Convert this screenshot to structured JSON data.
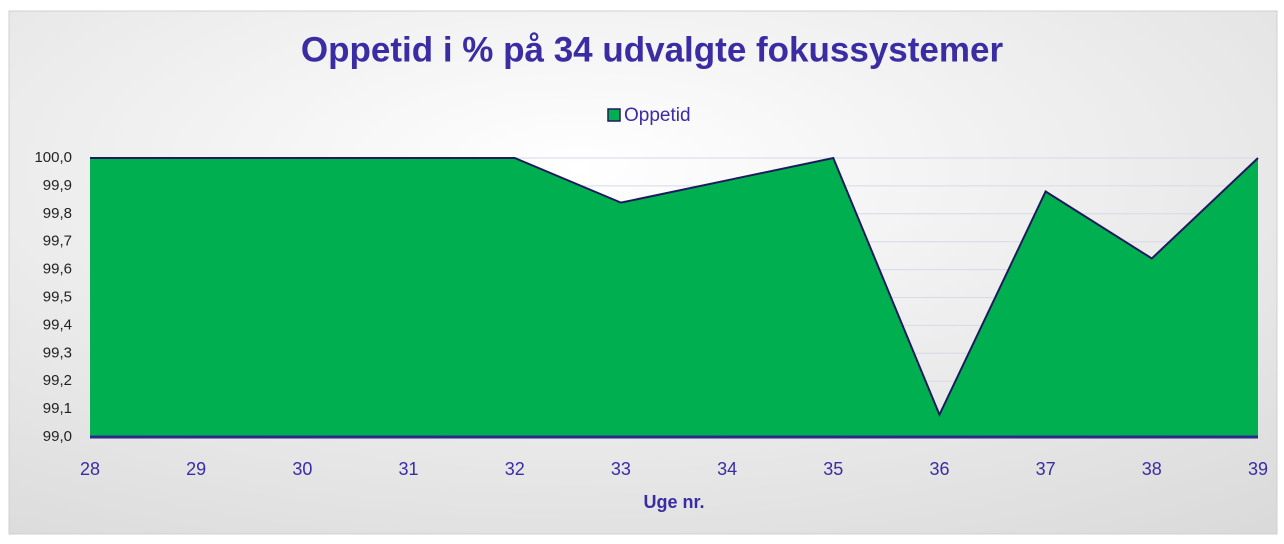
{
  "chart_data": {
    "type": "area",
    "title": "Oppetid i % på 34 udvalgte fokussystemer",
    "x_label": "Uge nr.",
    "categories": [
      "28",
      "29",
      "30",
      "31",
      "32",
      "33",
      "34",
      "35",
      "36",
      "37",
      "38",
      "39"
    ],
    "series": [
      {
        "name": "Oppetid",
        "color": "#00b050",
        "line_color": "#1f1a5e",
        "values": [
          100.0,
          100.0,
          100.0,
          100.0,
          100.0,
          99.84,
          99.92,
          100.0,
          99.08,
          99.88,
          99.64,
          100.0
        ]
      }
    ],
    "ylim": [
      99.0,
      100.0
    ],
    "yticks": [
      {
        "value": 99.0,
        "label": "99,0"
      },
      {
        "value": 99.1,
        "label": "99,1"
      },
      {
        "value": 99.2,
        "label": "99,2"
      },
      {
        "value": 99.3,
        "label": "99,3"
      },
      {
        "value": 99.4,
        "label": "99,4"
      },
      {
        "value": 99.5,
        "label": "99,5"
      },
      {
        "value": 99.6,
        "label": "99,6"
      },
      {
        "value": 99.7,
        "label": "99,7"
      },
      {
        "value": 99.8,
        "label": "99,8"
      },
      {
        "value": 99.9,
        "label": "99,9"
      },
      {
        "value": 100.0,
        "label": "100,0"
      }
    ],
    "grid": true
  }
}
